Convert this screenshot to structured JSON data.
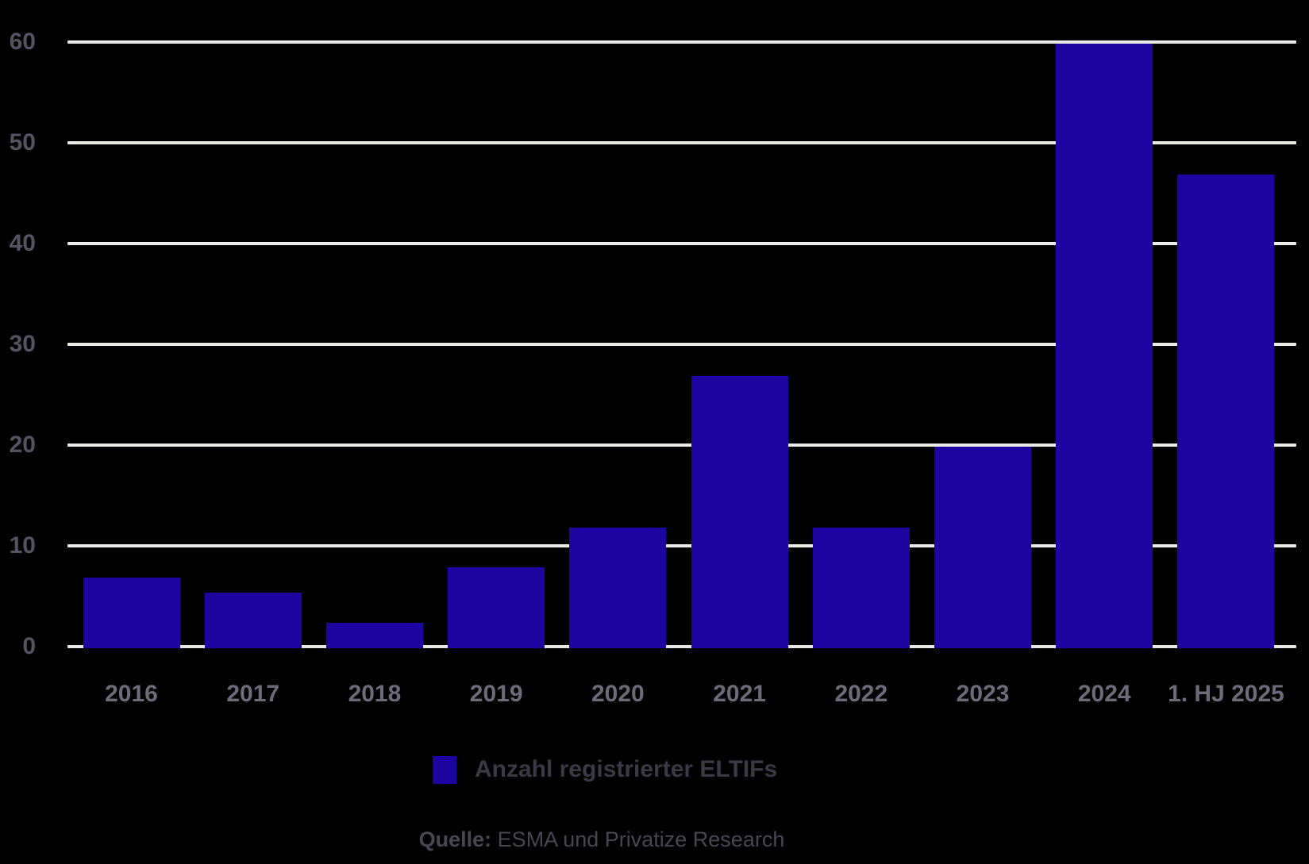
{
  "chart_data": {
    "type": "bar",
    "title": "",
    "categories": [
      "2016",
      "2017",
      "2018",
      "2019",
      "2020",
      "2021",
      "2022",
      "2023",
      "2024",
      "1. HJ 2025"
    ],
    "values": [
      7,
      5.5,
      2.5,
      8,
      12,
      27,
      12,
      20,
      60,
      47
    ],
    "series_name": "Anzahl registrierter ELTIFs",
    "xlabel": "",
    "ylabel": "",
    "ylim": [
      0,
      60
    ],
    "yticks": [
      0,
      10,
      20,
      30,
      40,
      50,
      60
    ],
    "grid": "horizontal",
    "legend_position": "bottom-center",
    "bar_color": "#1D04A0",
    "gridline_color": "#EDEBE8",
    "background_color": "#000000"
  },
  "legend": {
    "label": "Anzahl registrierter ELTIFs",
    "swatch_color": "#1D04A0"
  },
  "source": {
    "prefix": "Quelle:",
    "text": " ESMA und Privatize Research"
  },
  "colors": {
    "y_axis_label": "#57525F",
    "x_axis_label": "#6F6A78",
    "legend_text": "#3B3A44",
    "source_text": "#4A4651"
  }
}
